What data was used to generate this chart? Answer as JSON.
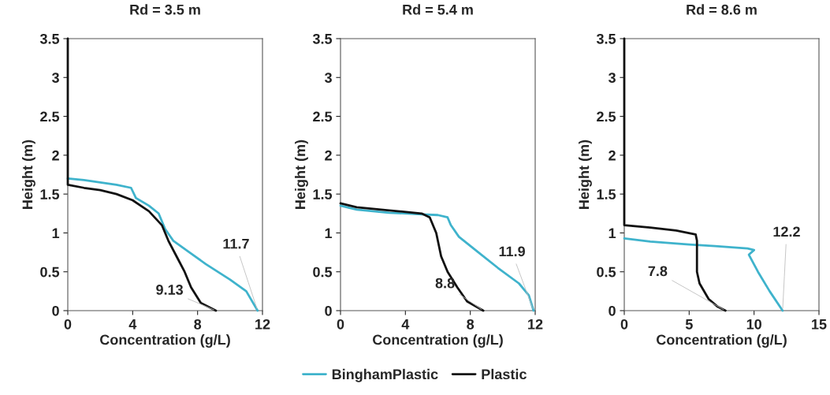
{
  "chart_data": [
    {
      "type": "line",
      "title": "Rd = 3.5 m",
      "xlabel": "Concentration (g/L)",
      "ylabel": "Height (m)",
      "xlim": [
        0,
        12
      ],
      "xticks": [
        0,
        4,
        8,
        12
      ],
      "ylim": [
        0,
        3.5
      ],
      "yticks": [
        0,
        0.5,
        1,
        1.5,
        2,
        2.5,
        3,
        3.5
      ],
      "grid": false,
      "legend": "bottom",
      "series": [
        {
          "name": "BinghamPlastic",
          "color": "#3fb3cc",
          "x": [
            0,
            1,
            2,
            3,
            3.9,
            4.2,
            5,
            5.6,
            6,
            6.5,
            7.5,
            8.5,
            10,
            11,
            11.7
          ],
          "values": [
            1.7,
            1.68,
            1.65,
            1.62,
            1.58,
            1.45,
            1.35,
            1.25,
            1.05,
            0.9,
            0.75,
            0.6,
            0.4,
            0.25,
            0
          ]
        },
        {
          "name": "Plastic",
          "color": "#111111",
          "x": [
            0,
            0,
            1,
            2,
            3,
            4,
            5,
            5.8,
            6.2,
            6.7,
            7.2,
            7.6,
            8.2,
            9.13
          ],
          "values": [
            3.5,
            1.62,
            1.58,
            1.55,
            1.5,
            1.42,
            1.28,
            1.1,
            0.9,
            0.7,
            0.5,
            0.3,
            0.1,
            0
          ]
        }
      ],
      "annotations": [
        {
          "text": "11.7",
          "x": 11.7,
          "y": 0
        },
        {
          "text": "9.13",
          "x": 9.13,
          "y": 0
        }
      ]
    },
    {
      "type": "line",
      "title": "Rd = 5.4 m",
      "xlabel": "Concentration (g/L)",
      "ylabel": "Height (m)",
      "xlim": [
        0,
        12
      ],
      "xticks": [
        0,
        4,
        8,
        12
      ],
      "ylim": [
        0,
        3.5
      ],
      "yticks": [
        0,
        0.5,
        1,
        1.5,
        2,
        2.5,
        3,
        3.5
      ],
      "grid": false,
      "series": [
        {
          "color": "#3fb3cc",
          "x": [
            0,
            1,
            3,
            5,
            6,
            6.6,
            6.8,
            7.3,
            8.5,
            9.7,
            11,
            11.6,
            11.9
          ],
          "values": [
            1.35,
            1.3,
            1.26,
            1.24,
            1.23,
            1.2,
            1.1,
            0.95,
            0.75,
            0.55,
            0.35,
            0.2,
            0
          ]
        },
        {
          "color": "#111111",
          "x": [
            0,
            1,
            3,
            5,
            5.5,
            5.9,
            6.2,
            6.6,
            7.2,
            7.8,
            8.8
          ],
          "values": [
            1.38,
            1.33,
            1.29,
            1.25,
            1.2,
            1.0,
            0.7,
            0.5,
            0.3,
            0.12,
            0
          ]
        }
      ],
      "annotations": [
        {
          "text": "11.9",
          "x": 11.9,
          "y": 0
        },
        {
          "text": "8.8",
          "x": 8.8,
          "y": 0
        }
      ]
    },
    {
      "type": "line",
      "title": "Rd = 8.6 m",
      "xlabel": "Concentration (g/L)",
      "ylabel": "Height (m)",
      "xlim": [
        0,
        15
      ],
      "xticks": [
        0,
        5,
        10,
        15
      ],
      "ylim": [
        0,
        3.5
      ],
      "yticks": [
        0,
        0.5,
        1,
        1.5,
        2,
        2.5,
        3,
        3.5
      ],
      "grid": false,
      "series": [
        {
          "color": "#3fb3cc",
          "x": [
            0,
            2,
            5,
            7,
            9.5,
            10,
            9.6,
            10.3,
            11.2,
            12.2
          ],
          "values": [
            0.93,
            0.89,
            0.85,
            0.83,
            0.8,
            0.78,
            0.72,
            0.5,
            0.25,
            0
          ]
        },
        {
          "color": "#111111",
          "x": [
            0,
            0,
            2,
            4,
            5.5,
            5.6,
            5.6,
            5.8,
            6.5,
            7.2,
            7.8
          ],
          "values": [
            3.5,
            1.1,
            1.07,
            1.03,
            0.98,
            0.9,
            0.5,
            0.35,
            0.15,
            0.05,
            0
          ]
        }
      ],
      "annotations": [
        {
          "text": "12.2",
          "x": 12.2,
          "y": 0
        },
        {
          "text": "7.8",
          "x": 7.8,
          "y": 0
        }
      ]
    }
  ]
}
